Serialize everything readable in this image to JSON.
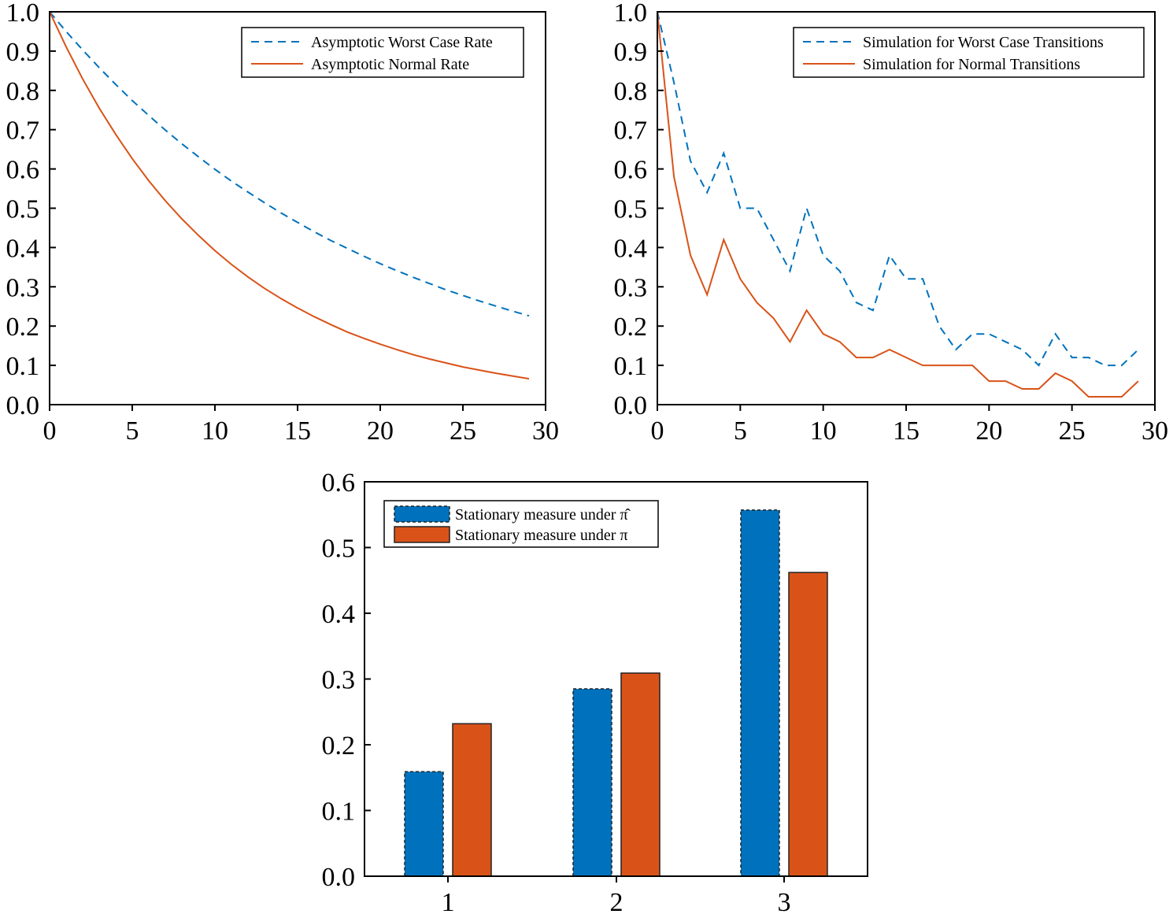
{
  "colors": {
    "blue": "#0072bd",
    "orange": "#d95319"
  },
  "chart_data": [
    {
      "type": "line",
      "xlim": [
        0,
        30
      ],
      "ylim": [
        0,
        1
      ],
      "xticks": [
        0,
        5,
        10,
        15,
        20,
        25,
        30
      ],
      "xtick_labels": [
        "0",
        "5",
        "10",
        "15",
        "20",
        "25",
        "30"
      ],
      "yticks": [
        0,
        0.1,
        0.2,
        0.3,
        0.4,
        0.5,
        0.6,
        0.7,
        0.8,
        0.9,
        1.0
      ],
      "ytick_labels": [
        "0.0",
        "0.1",
        "0.2",
        "0.3",
        "0.4",
        "0.5",
        "0.6",
        "0.7",
        "0.8",
        "0.9",
        "1.0"
      ],
      "legend_position": "top-right",
      "x": [
        0,
        1,
        2,
        3,
        4,
        5,
        6,
        7,
        8,
        9,
        10,
        11,
        12,
        13,
        14,
        15,
        16,
        17,
        18,
        19,
        20,
        21,
        22,
        23,
        24,
        25,
        26,
        27,
        28,
        29
      ],
      "series": [
        {
          "name": "Asymptotic Worst Case Rate",
          "style": "dashed",
          "color": "#0072bd",
          "values": [
            1.0,
            0.95,
            0.903,
            0.858,
            0.815,
            0.774,
            0.736,
            0.699,
            0.664,
            0.631,
            0.599,
            0.569,
            0.541,
            0.514,
            0.488,
            0.464,
            0.44,
            0.418,
            0.398,
            0.378,
            0.359,
            0.341,
            0.324,
            0.308,
            0.292,
            0.278,
            0.264,
            0.251,
            0.238,
            0.226
          ]
        },
        {
          "name": "Asymptotic Normal Rate",
          "style": "solid",
          "color": "#d95319",
          "values": [
            1.0,
            0.911,
            0.829,
            0.755,
            0.688,
            0.626,
            0.57,
            0.519,
            0.473,
            0.431,
            0.392,
            0.357,
            0.325,
            0.296,
            0.27,
            0.246,
            0.224,
            0.204,
            0.185,
            0.169,
            0.154,
            0.14,
            0.127,
            0.116,
            0.106,
            0.096,
            0.088,
            0.08,
            0.073,
            0.066
          ]
        }
      ]
    },
    {
      "type": "line",
      "xlim": [
        0,
        30
      ],
      "ylim": [
        0,
        1
      ],
      "xticks": [
        0,
        5,
        10,
        15,
        20,
        25,
        30
      ],
      "xtick_labels": [
        "0",
        "5",
        "10",
        "15",
        "20",
        "25",
        "30"
      ],
      "yticks": [
        0,
        0.1,
        0.2,
        0.3,
        0.4,
        0.5,
        0.6,
        0.7,
        0.8,
        0.9,
        1.0
      ],
      "ytick_labels": [
        "0.0",
        "0.1",
        "0.2",
        "0.3",
        "0.4",
        "0.5",
        "0.6",
        "0.7",
        "0.8",
        "0.9",
        "1.0"
      ],
      "legend_position": "top-right",
      "x": [
        0,
        1,
        2,
        3,
        4,
        5,
        6,
        7,
        8,
        9,
        10,
        11,
        12,
        13,
        14,
        15,
        16,
        17,
        18,
        19,
        20,
        21,
        22,
        23,
        24,
        25,
        26,
        27,
        28,
        29
      ],
      "series": [
        {
          "name": "Simulation for Worst Case Transitions",
          "style": "dashed",
          "color": "#0072bd",
          "values": [
            1.0,
            0.82,
            0.62,
            0.54,
            0.64,
            0.5,
            0.5,
            0.42,
            0.34,
            0.5,
            0.38,
            0.34,
            0.26,
            0.24,
            0.38,
            0.32,
            0.32,
            0.2,
            0.14,
            0.18,
            0.18,
            0.16,
            0.14,
            0.1,
            0.18,
            0.12,
            0.12,
            0.1,
            0.1,
            0.14
          ]
        },
        {
          "name": "Simulation for Normal Transitions",
          "style": "solid",
          "color": "#d95319",
          "values": [
            1.0,
            0.58,
            0.38,
            0.28,
            0.42,
            0.32,
            0.26,
            0.22,
            0.16,
            0.24,
            0.18,
            0.16,
            0.12,
            0.12,
            0.14,
            0.12,
            0.1,
            0.1,
            0.1,
            0.1,
            0.06,
            0.06,
            0.04,
            0.04,
            0.08,
            0.06,
            0.02,
            0.02,
            0.02,
            0.06
          ]
        }
      ]
    },
    {
      "type": "bar",
      "ylim": [
        0,
        0.6
      ],
      "yticks": [
        0,
        0.1,
        0.2,
        0.3,
        0.4,
        0.5,
        0.6
      ],
      "ytick_labels": [
        "0.0",
        "0.1",
        "0.2",
        "0.3",
        "0.4",
        "0.5",
        "0.6"
      ],
      "categories": [
        "1",
        "2",
        "3"
      ],
      "legend_position": "top-left",
      "series": [
        {
          "name": "Stationary measure under π̂",
          "style": "dashed-edge",
          "color": "#0072bd",
          "values": [
            0.159,
            0.285,
            0.557
          ]
        },
        {
          "name": "Stationary measure under π",
          "style": "solid-edge",
          "color": "#d95319",
          "values": [
            0.232,
            0.309,
            0.462
          ]
        }
      ]
    }
  ]
}
